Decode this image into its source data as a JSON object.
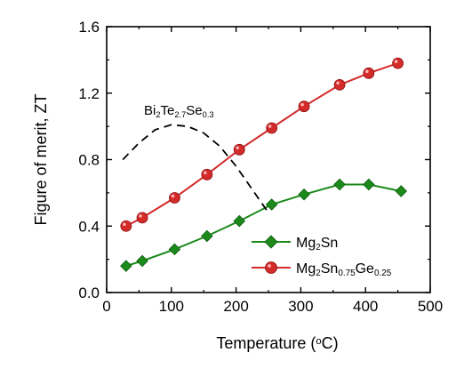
{
  "chart_data": {
    "type": "line",
    "xlabel": "Temperature (°C)",
    "xlabel_parts": {
      "main": "Temperature (",
      "sup": "o",
      "tail": "C)"
    },
    "ylabel": "Figure of merit, ZT",
    "xlim": [
      0,
      500
    ],
    "ylim": [
      0,
      1.6
    ],
    "x_ticks": [
      0,
      100,
      200,
      300,
      400,
      500
    ],
    "y_ticks": [
      0.0,
      0.4,
      0.8,
      1.2,
      1.6
    ],
    "x_tick_labels": [
      "0",
      "100",
      "200",
      "300",
      "400",
      "500"
    ],
    "y_tick_labels": [
      "0.0",
      "0.4",
      "0.8",
      "1.2",
      "1.6"
    ],
    "grid": false,
    "legend_position": "bottom-right",
    "series": [
      {
        "name": "Mg2Sn",
        "name_parts": [
          {
            "t": "Mg",
            "s": "n"
          },
          {
            "t": "2",
            "s": "sub"
          },
          {
            "t": "Sn",
            "s": "n"
          }
        ],
        "marker": "diamond",
        "color": "#1b8a1b",
        "line_style": "solid",
        "x": [
          30,
          55,
          105,
          155,
          205,
          255,
          305,
          360,
          405,
          455
        ],
        "y": [
          0.16,
          0.19,
          0.26,
          0.34,
          0.43,
          0.53,
          0.59,
          0.65,
          0.65,
          0.61
        ]
      },
      {
        "name": "Mg2Sn0.75Ge0.25",
        "name_parts": [
          {
            "t": "Mg",
            "s": "n"
          },
          {
            "t": "2",
            "s": "sub"
          },
          {
            "t": "Sn",
            "s": "n"
          },
          {
            "t": "0.75",
            "s": "sub"
          },
          {
            "t": "Ge",
            "s": "n"
          },
          {
            "t": "0.25",
            "s": "sub"
          }
        ],
        "marker": "circle",
        "color": "#d42a2a",
        "line_style": "solid",
        "x": [
          30,
          55,
          105,
          155,
          205,
          255,
          305,
          360,
          405,
          450
        ],
        "y": [
          0.4,
          0.45,
          0.57,
          0.71,
          0.86,
          0.99,
          1.12,
          1.25,
          1.32,
          1.38
        ]
      },
      {
        "name": "Bi2Te2.7Se0.3",
        "name_parts": [
          {
            "t": "Bi",
            "s": "n"
          },
          {
            "t": "2",
            "s": "sub"
          },
          {
            "t": "Te",
            "s": "n"
          },
          {
            "t": "2.7",
            "s": "sub"
          },
          {
            "t": "Se",
            "s": "n"
          },
          {
            "t": "0.3",
            "s": "sub"
          }
        ],
        "marker": "none",
        "color": "#000000",
        "line_style": "dashed",
        "x": [
          25,
          50,
          75,
          100,
          125,
          150,
          175,
          200,
          225,
          250
        ],
        "y": [
          0.8,
          0.9,
          0.98,
          1.01,
          1.0,
          0.96,
          0.88,
          0.76,
          0.62,
          0.48
        ]
      }
    ]
  }
}
